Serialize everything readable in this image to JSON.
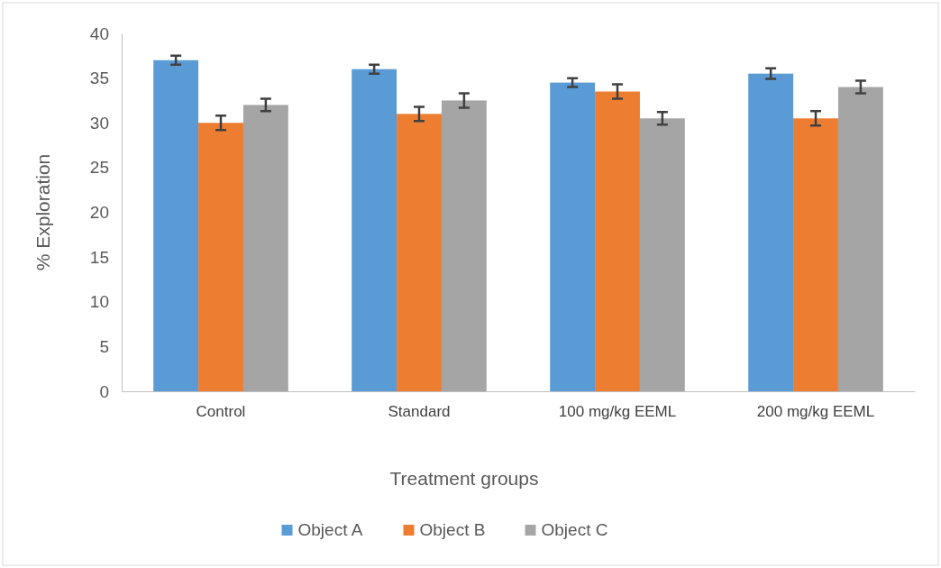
{
  "chart_data": {
    "type": "bar",
    "xlabel": "Treatment groups",
    "ylabel": "% Exploration",
    "categories": [
      "Control",
      "Standard",
      "100 mg/kg EEML",
      "200 mg/kg EEML"
    ],
    "series": [
      {
        "name": "Object A",
        "color": "#5b9bd5",
        "values": [
          37,
          36,
          34.5,
          35.5
        ],
        "errors": [
          0.5,
          0.5,
          0.5,
          0.6
        ]
      },
      {
        "name": "Object B",
        "color": "#ed7d31",
        "values": [
          30,
          31,
          33.5,
          30.5
        ],
        "errors": [
          0.8,
          0.8,
          0.8,
          0.8
        ]
      },
      {
        "name": "Object C",
        "color": "#a5a5a5",
        "values": [
          32,
          32.5,
          30.5,
          34
        ],
        "errors": [
          0.7,
          0.8,
          0.7,
          0.7
        ]
      }
    ],
    "ylim": [
      0,
      40
    ],
    "yticks": [
      0,
      5,
      10,
      15,
      20,
      25,
      30,
      35,
      40
    ],
    "grid": false,
    "legend": "bottom"
  }
}
